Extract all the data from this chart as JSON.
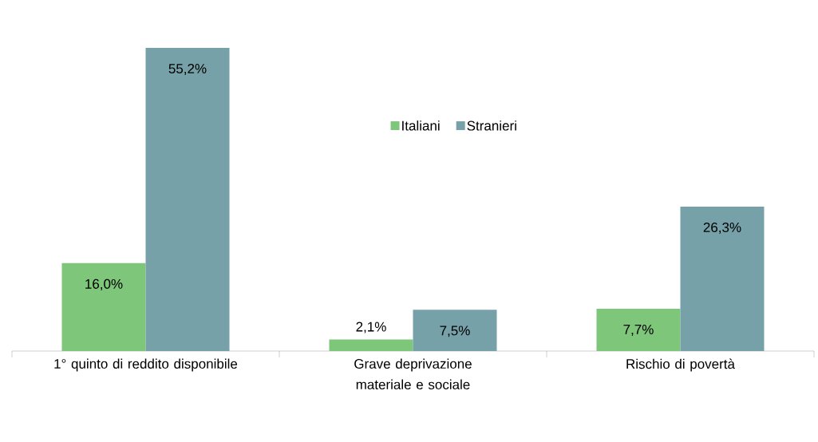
{
  "chart_data": {
    "type": "bar",
    "categories": [
      "1° quinto di reddito disponibile",
      "Grave deprivazione materiale e sociale",
      "Rischio di povertà"
    ],
    "series": [
      {
        "name": "Italiani",
        "color": "#7dc67a",
        "values": [
          16.0,
          2.1,
          7.7
        ],
        "value_labels": [
          "16,0%",
          "2,1%",
          "7,7%"
        ]
      },
      {
        "name": "Stranieri",
        "color": "#76a1a8",
        "values": [
          55.2,
          7.5,
          26.3
        ],
        "value_labels": [
          "55,2%",
          "7,5%",
          "26,3%"
        ]
      }
    ],
    "legend": "top"
  }
}
